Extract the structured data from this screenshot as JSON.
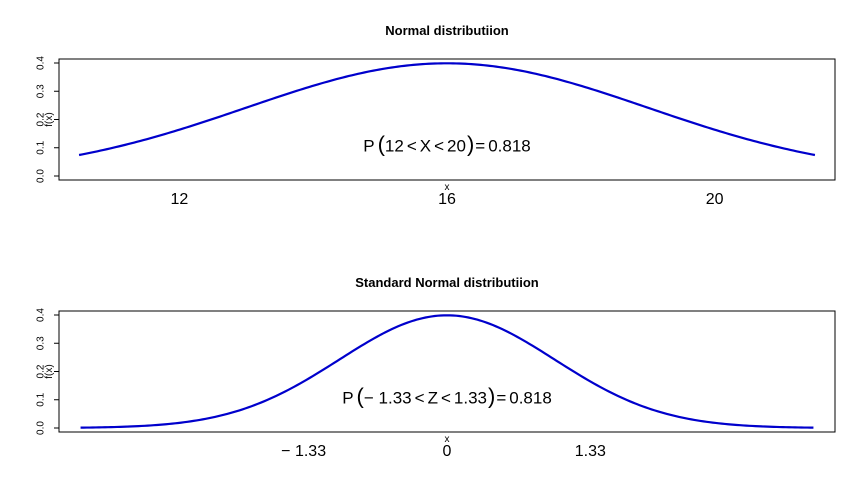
{
  "chart_data": [
    {
      "type": "line",
      "title": "Normal distributiion",
      "xlabel": "x",
      "ylabel": "f(x)",
      "distribution": {
        "mean": 16,
        "sd": 3,
        "x_from": 10.5,
        "x_to": 21.5,
        "samples": 240
      },
      "xlim": [
        10.2,
        21.8
      ],
      "ylim": [
        0,
        0.4
      ],
      "x_ticks": [
        12,
        16,
        20
      ],
      "x_tick_labels": [
        "12",
        "16",
        "20"
      ],
      "y_ticks": [
        0.0,
        0.1,
        0.2,
        0.3,
        0.4
      ],
      "y_tick_labels": [
        "0.0",
        "0.1",
        "0.2",
        "0.3",
        "0.4"
      ],
      "line_color": "#0000CC",
      "annotation": {
        "x": 16,
        "y": 0.08,
        "prefix": "P",
        "open": "(",
        "lower": "12",
        "lt1": "<",
        "var": "X",
        "lt2": "<",
        "upper": "20",
        "close": ")",
        "eq": "=",
        "value": "0.818"
      }
    },
    {
      "type": "line",
      "title": "Standard Normal distributiion",
      "xlabel": "x",
      "ylabel": "f(x)",
      "distribution": {
        "mean": 0,
        "sd": 1,
        "x_from": -3.4,
        "x_to": 3.4,
        "samples": 240
      },
      "xlim": [
        -3.6,
        3.6
      ],
      "ylim": [
        0,
        0.4
      ],
      "x_ticks": [
        -1.33,
        0,
        1.33
      ],
      "x_tick_labels": [
        "− 1.33",
        "0",
        "1.33"
      ],
      "y_ticks": [
        0.0,
        0.1,
        0.2,
        0.3,
        0.4
      ],
      "y_tick_labels": [
        "0.0",
        "0.1",
        "0.2",
        "0.3",
        "0.4"
      ],
      "line_color": "#0000CC",
      "annotation": {
        "x": 0,
        "y": 0.08,
        "prefix": "P",
        "open": "(",
        "lower": "− 1.33",
        "lt1": "<",
        "var": "Z",
        "lt2": "<",
        "upper": "1.33",
        "close": ")",
        "eq": "=",
        "value": "0.818"
      }
    }
  ]
}
